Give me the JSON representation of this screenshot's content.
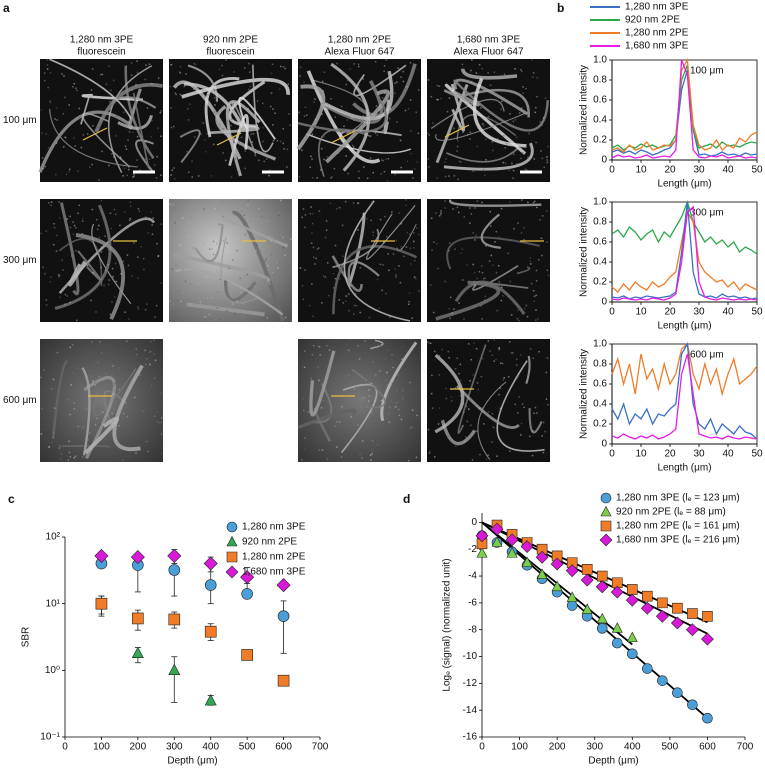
{
  "panel_a": {
    "label": "a",
    "column_headers": [
      [
        "1,280 nm 3PE",
        "fluorescein"
      ],
      [
        "920 nm 2PE",
        "fluorescein"
      ],
      [
        "1,280 nm 2PE",
        "Alexa Fluor 647"
      ],
      [
        "1,680 nm 3PE",
        "Alexa Fluor 647"
      ]
    ],
    "row_labels": [
      "100 μm",
      "300 μm",
      "600 μm"
    ]
  },
  "chart_data": [
    {
      "type": "line",
      "panel_label": "b",
      "annotation": "100 μm",
      "x_label": "Length (μm)",
      "y_label": "Normalized intensity",
      "xlim": [
        0,
        50
      ],
      "ylim": [
        0,
        1
      ],
      "xticks": [
        0,
        10,
        20,
        30,
        40,
        50
      ],
      "yticks": [
        0,
        0.2,
        0.4,
        0.6,
        0.8,
        {
          "value": 1,
          "label": "1.0"
        }
      ],
      "x": [
        0,
        2,
        4,
        6,
        8,
        10,
        12,
        14,
        16,
        18,
        20,
        22,
        24,
        26,
        28,
        30,
        32,
        34,
        36,
        38,
        40,
        42,
        44,
        46,
        48,
        50
      ],
      "series": [
        {
          "name": "1,280 nm 3PE",
          "color": "#3a6fc4",
          "values": [
            0.08,
            0.1,
            0.07,
            0.09,
            0.06,
            0.1,
            0.08,
            0.05,
            0.07,
            0.1,
            0.12,
            0.2,
            0.7,
            0.9,
            0.3,
            0.05,
            0.06,
            0.04,
            0.05,
            0.08,
            0.05,
            0.06,
            0.04,
            0.07,
            0.05,
            0.06
          ]
        },
        {
          "name": "920 nm 2PE",
          "color": "#2aa84a",
          "values": [
            0.12,
            0.15,
            0.1,
            0.14,
            0.12,
            0.16,
            0.13,
            0.15,
            0.12,
            0.14,
            0.15,
            0.25,
            0.8,
            0.95,
            0.3,
            0.12,
            0.14,
            0.16,
            0.12,
            0.18,
            0.14,
            0.15,
            0.13,
            0.16,
            0.18,
            0.17
          ]
        },
        {
          "name": "1,280 nm 2PE",
          "color": "#f07c28",
          "values": [
            0.1,
            0.12,
            0.08,
            0.15,
            0.1,
            0.12,
            0.18,
            0.1,
            0.12,
            0.15,
            0.14,
            0.2,
            0.9,
            1.0,
            0.35,
            0.15,
            0.1,
            0.12,
            0.2,
            0.1,
            0.15,
            0.12,
            0.22,
            0.18,
            0.25,
            0.28
          ]
        },
        {
          "name": "1,680 nm 3PE",
          "color": "#e61ee6",
          "values": [
            0.02,
            0.05,
            0.03,
            0.04,
            0.02,
            0.03,
            0.05,
            0.02,
            0.03,
            0.04,
            0.03,
            0.1,
            1.0,
            0.85,
            0.1,
            0.03,
            0.02,
            0.04,
            0.03,
            0.05,
            0.02,
            0.03,
            0.04,
            0.02,
            0.03,
            0.02
          ]
        }
      ]
    },
    {
      "type": "line",
      "annotation": "300 μm",
      "x_label": "Length (μm)",
      "y_label": "Normalized intensity",
      "xlim": [
        0,
        50
      ],
      "ylim": [
        0,
        1
      ],
      "xticks": [
        0,
        10,
        20,
        30,
        40,
        50
      ],
      "yticks": [
        0,
        0.2,
        0.4,
        0.6,
        0.8,
        {
          "value": 1,
          "label": "1.0"
        }
      ],
      "x": [
        0,
        2,
        4,
        6,
        8,
        10,
        12,
        14,
        16,
        18,
        20,
        22,
        24,
        26,
        28,
        30,
        32,
        34,
        36,
        38,
        40,
        42,
        44,
        46,
        48,
        50
      ],
      "series": [
        {
          "color": "#2aa84a",
          "values": [
            0.68,
            0.72,
            0.65,
            0.75,
            0.7,
            0.62,
            0.68,
            0.72,
            0.6,
            0.7,
            0.65,
            0.75,
            0.85,
            1.0,
            0.8,
            0.7,
            0.6,
            0.65,
            0.58,
            0.62,
            0.55,
            0.6,
            0.5,
            0.55,
            0.52,
            0.48
          ]
        },
        {
          "color": "#f07c28",
          "values": [
            0.15,
            0.1,
            0.18,
            0.12,
            0.2,
            0.15,
            0.12,
            0.2,
            0.15,
            0.18,
            0.25,
            0.3,
            0.6,
            0.9,
            0.8,
            0.4,
            0.3,
            0.25,
            0.2,
            0.22,
            0.15,
            0.2,
            0.12,
            0.18,
            0.15,
            0.12
          ]
        },
        {
          "color": "#3a6fc4",
          "values": [
            0.05,
            0.04,
            0.06,
            0.03,
            0.05,
            0.04,
            0.06,
            0.05,
            0.04,
            0.05,
            0.06,
            0.1,
            0.5,
            1.0,
            0.3,
            0.08,
            0.05,
            0.06,
            0.04,
            0.08,
            0.05,
            0.06,
            0.04,
            0.05,
            0.03,
            0.04
          ]
        },
        {
          "color": "#e61ee6",
          "values": [
            0.03,
            0.02,
            0.04,
            0.03,
            0.02,
            0.03,
            0.02,
            0.04,
            0.03,
            0.02,
            0.04,
            0.08,
            0.4,
            0.9,
            0.95,
            0.2,
            0.05,
            0.03,
            0.02,
            0.04,
            0.03,
            0.02,
            0.03,
            0.02,
            0.03,
            0.02
          ]
        }
      ]
    },
    {
      "type": "line",
      "annotation": "600 μm",
      "x_label": "Length (μm)",
      "y_label": "Normalized intensity",
      "xlim": [
        0,
        50
      ],
      "ylim": [
        0,
        1
      ],
      "xticks": [
        0,
        10,
        20,
        30,
        40,
        50
      ],
      "yticks": [
        0,
        0.2,
        0.4,
        0.6,
        0.8,
        {
          "value": 1,
          "label": "1.0"
        }
      ],
      "x": [
        0,
        2,
        4,
        6,
        8,
        10,
        12,
        14,
        16,
        18,
        20,
        22,
        24,
        26,
        28,
        30,
        32,
        34,
        36,
        38,
        40,
        42,
        44,
        46,
        48,
        50
      ],
      "series": [
        {
          "color": "#f07c28",
          "values": [
            0.7,
            0.85,
            0.6,
            0.8,
            0.5,
            0.9,
            0.65,
            0.75,
            0.55,
            0.8,
            0.6,
            0.7,
            0.95,
            1.0,
            0.7,
            0.55,
            0.8,
            0.6,
            0.75,
            0.5,
            0.7,
            0.85,
            0.6,
            0.65,
            0.7,
            0.78
          ]
        },
        {
          "color": "#3a6fc4",
          "values": [
            0.35,
            0.25,
            0.4,
            0.2,
            0.3,
            0.25,
            0.35,
            0.2,
            0.3,
            0.28,
            0.35,
            0.4,
            0.9,
            1.0,
            0.4,
            0.2,
            0.15,
            0.25,
            0.1,
            0.2,
            0.15,
            0.1,
            0.18,
            0.12,
            0.1,
            0.05
          ]
        },
        {
          "color": "#e61ee6",
          "values": [
            0.08,
            0.06,
            0.1,
            0.07,
            0.05,
            0.08,
            0.06,
            0.09,
            0.05,
            0.07,
            0.1,
            0.15,
            0.7,
            0.9,
            0.5,
            0.1,
            0.08,
            0.06,
            0.07,
            0.05,
            0.08,
            0.06,
            0.05,
            0.07,
            0.06,
            0.05
          ]
        }
      ]
    },
    {
      "type": "scatter",
      "panel_label": "c",
      "x_label": "Depth (μm)",
      "y_label": "SBR",
      "log_y": true,
      "xlim": [
        0,
        700
      ],
      "ylim": [
        0.1,
        100
      ],
      "xticks": [
        0,
        100,
        200,
        300,
        400,
        500,
        600,
        700
      ],
      "yticks": [
        {
          "value": 0.1,
          "label": "10⁻¹"
        },
        {
          "value": 1,
          "label": "10⁰"
        },
        {
          "value": 10,
          "label": "10¹"
        },
        {
          "value": 100,
          "label": "10²"
        }
      ],
      "x": [
        100,
        200,
        300,
        400,
        500,
        600
      ],
      "series": [
        {
          "name": "1,280 nm 3PE",
          "color": "#4a9fd8",
          "marker": "circle",
          "values": [
            40,
            38,
            32,
            19,
            14,
            6.5
          ],
          "error_low": [
            null,
            15,
            13,
            10,
            null,
            1.8
          ],
          "error_high": [
            null,
            50,
            50,
            45,
            25,
            11
          ]
        },
        {
          "name": "920 nm 2PE",
          "color": "#33a852",
          "marker": "triangle",
          "values": [
            10,
            1.8,
            1.0,
            0.35,
            null,
            null
          ],
          "error_low": [
            6.5,
            1.3,
            0.33,
            0.3,
            null,
            null
          ],
          "error_high": [
            13,
            2.2,
            1.6,
            0.42,
            null,
            null
          ]
        },
        {
          "name": "1,280 nm 2PE",
          "color": "#f07c28",
          "marker": "square",
          "values": [
            10,
            6,
            5.8,
            3.8,
            1.7,
            0.7
          ],
          "error_low": [
            7,
            4,
            4.3,
            2.8,
            null,
            null
          ],
          "error_high": [
            13,
            8,
            7.5,
            5,
            null,
            null
          ]
        },
        {
          "name": "1,680 nm 3PE",
          "color": "#d81ad8",
          "marker": "diamond",
          "values": [
            52,
            50,
            52,
            40,
            25,
            19
          ],
          "error_low": [
            null,
            null,
            40,
            30,
            20,
            null
          ],
          "error_high": [
            null,
            null,
            65,
            50,
            35,
            null
          ]
        }
      ]
    },
    {
      "type": "scatter",
      "panel_label": "d",
      "x_label": "Depth (μm)",
      "y_label": "Logₑ (signal) (normalized unit)",
      "xlim": [
        0,
        700
      ],
      "ylim": [
        -16,
        0.7
      ],
      "xticks": [
        0,
        100,
        200,
        300,
        400,
        500,
        600,
        700
      ],
      "yticks": [
        -16,
        -14,
        -12,
        -10,
        -8,
        -6,
        -4,
        -2,
        0
      ],
      "series": [
        {
          "name": "1,280 nm 3PE (lₑ = 123 μm)",
          "color": "#4a9fd8",
          "marker": "circle",
          "x": [
            0,
            40,
            80,
            120,
            160,
            200,
            240,
            280,
            320,
            360,
            400,
            440,
            480,
            520,
            560,
            600
          ],
          "values": [
            -1,
            -1.5,
            -2.2,
            -3.2,
            -4.2,
            -5.2,
            -6.2,
            -7,
            -7.9,
            -9,
            -9.8,
            -10.9,
            -11.8,
            -12.7,
            -13.6,
            -14.6
          ]
        },
        {
          "name": "920 nm 2PE (lₑ = 88 μm)",
          "color": "#7ad04a",
          "marker": "triangle",
          "x": [
            0,
            40,
            80,
            120,
            160,
            200,
            240,
            280,
            320,
            360,
            400
          ],
          "values": [
            -2.3,
            -1.5,
            -2.3,
            -3,
            -3.9,
            -4.8,
            -5.6,
            -6.5,
            -7.2,
            -7.9,
            -8.6
          ]
        },
        {
          "name": "1,280 nm 2PE (lₑ = 161 μm)",
          "color": "#f07c28",
          "marker": "square",
          "x": [
            0,
            40,
            80,
            120,
            160,
            200,
            240,
            280,
            320,
            360,
            400,
            440,
            480,
            520,
            560,
            600
          ],
          "values": [
            -1.6,
            -0.2,
            -0.9,
            -1.5,
            -2,
            -2.5,
            -3,
            -3.5,
            -4,
            -4.5,
            -5,
            -5.5,
            -6,
            -6.4,
            -6.8,
            -7
          ]
        },
        {
          "name": "1,680 nm 3PE (lₑ = 216 μm)",
          "color": "#d81ad8",
          "marker": "diamond",
          "x": [
            0,
            40,
            80,
            120,
            160,
            200,
            240,
            280,
            320,
            360,
            400,
            440,
            480,
            520,
            560,
            600
          ],
          "values": [
            -1,
            -0.5,
            -1.3,
            -1.8,
            -2.6,
            -3.1,
            -3.6,
            -4.3,
            -4.8,
            -5.2,
            -5.8,
            -6.4,
            -7,
            -7.5,
            -8,
            -8.7
          ]
        }
      ],
      "fits": [
        {
          "x": [
            0,
            600
          ],
          "values": [
            0,
            -14.6
          ]
        },
        {
          "x": [
            0,
            400
          ],
          "values": [
            0,
            -9.1
          ]
        },
        {
          "x": [
            0,
            600
          ],
          "values": [
            0,
            -7.45
          ]
        },
        {
          "x": [
            0,
            600
          ],
          "values": [
            0,
            -8.3
          ]
        }
      ]
    }
  ]
}
